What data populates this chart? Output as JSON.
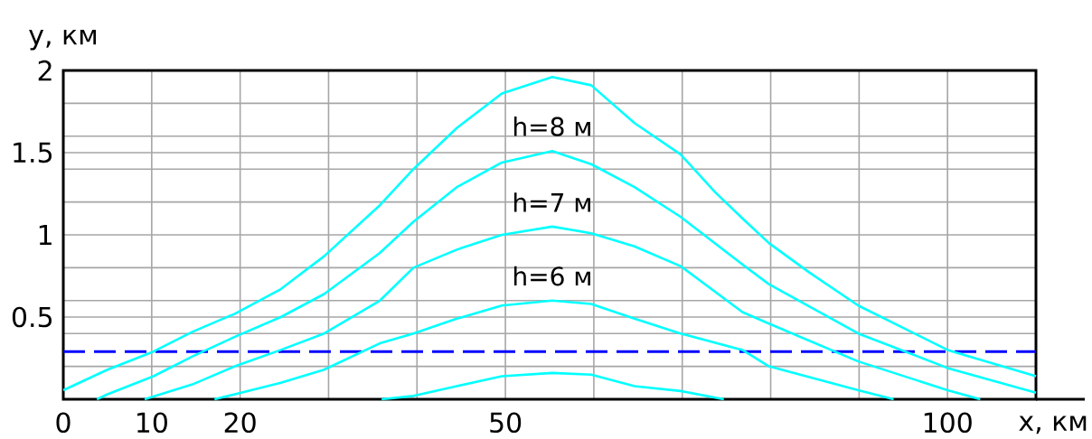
{
  "chart_data": {
    "type": "line",
    "xlabel": "x, км",
    "ylabel": "y, км",
    "xlim": [
      0,
      110
    ],
    "ylim": [
      0,
      2
    ],
    "xticks": [
      0,
      10,
      20,
      {
        "value": 30,
        "label": null
      },
      {
        "value": 40,
        "label": null
      },
      50,
      {
        "value": 60,
        "label": null
      },
      {
        "value": 70,
        "label": null
      },
      {
        "value": 80,
        "label": null
      },
      {
        "value": 90,
        "label": null
      },
      100,
      {
        "value": 110,
        "label": null
      }
    ],
    "yticks": [
      {
        "value": 0.2,
        "label": null
      },
      {
        "value": 0.4,
        "label": null
      },
      0.5,
      {
        "value": 0.6,
        "label": null
      },
      {
        "value": 0.8,
        "label": null
      },
      1,
      {
        "value": 1.2,
        "label": null
      },
      {
        "value": 1.4,
        "label": null
      },
      1.5,
      {
        "value": 1.6,
        "label": null
      },
      {
        "value": 1.8,
        "label": null
      },
      2
    ],
    "grid": true,
    "ref_lines": [
      {
        "axis": "y",
        "value": 0.29,
        "color": "#0000ff",
        "line_style": "dashed"
      }
    ],
    "series": [
      {
        "color": "#00ffff",
        "x": [
          0,
          5,
          10.2,
          14.6,
          19.4,
          24.6,
          29.5,
          35.8,
          39.6,
          44.5,
          49.6,
          55.3,
          59.7,
          64.6,
          69.8,
          73.7,
          76.8,
          79.8,
          84.4,
          89.9,
          100,
          110
        ],
        "values": [
          0.055,
          0.18,
          0.29,
          0.41,
          0.52,
          0.67,
          0.87,
          1.18,
          1.4,
          1.65,
          1.86,
          1.96,
          1.91,
          1.68,
          1.49,
          1.26,
          1.1,
          0.95,
          0.77,
          0.57,
          0.3,
          0.14
        ]
      },
      {
        "name": "h=8 м",
        "color": "#00ffff",
        "x": [
          3.8,
          5,
          10.2,
          14.6,
          19.4,
          24.6,
          29.5,
          35.8,
          39.6,
          44.5,
          49.6,
          55.3,
          59.7,
          64.6,
          69.8,
          76.8,
          79.8,
          89.9,
          100,
          110
        ],
        "values": [
          0,
          0.03,
          0.14,
          0.26,
          0.38,
          0.5,
          0.64,
          0.89,
          1.08,
          1.29,
          1.44,
          1.51,
          1.43,
          1.29,
          1.11,
          0.82,
          0.7,
          0.4,
          0.19,
          0.04
        ]
      },
      {
        "name": "h=7 м",
        "color": "#00ffff",
        "x": [
          9.2,
          14.6,
          19.4,
          24.6,
          29.5,
          35.8,
          39.6,
          44.5,
          49.6,
          55.3,
          59.7,
          64.6,
          69.8,
          76.8,
          79.8,
          89.9,
          100,
          103.7
        ],
        "values": [
          0,
          0.09,
          0.2,
          0.3,
          0.4,
          0.6,
          0.8,
          0.91,
          1.0,
          1.05,
          1.01,
          0.93,
          0.81,
          0.53,
          0.46,
          0.23,
          0.055,
          0
        ]
      },
      {
        "name": "h=6 м",
        "color": "#00ffff",
        "x": [
          17.1,
          19.4,
          24.6,
          29.5,
          35.8,
          39.6,
          44.5,
          49.6,
          55.3,
          59.7,
          64.6,
          69.8,
          76.8,
          79.8,
          89.9,
          93.9
        ],
        "values": [
          0,
          0.03,
          0.1,
          0.18,
          0.34,
          0.4,
          0.49,
          0.57,
          0.6,
          0.58,
          0.49,
          0.4,
          0.3,
          0.2,
          0.055,
          0
        ]
      },
      {
        "color": "#00ffff",
        "x": [
          36,
          39.6,
          44.5,
          49.6,
          55.3,
          59.7,
          64.6,
          69.8,
          74.7
        ],
        "values": [
          0,
          0.02,
          0.08,
          0.14,
          0.16,
          0.15,
          0.08,
          0.05,
          0
        ]
      }
    ]
  }
}
